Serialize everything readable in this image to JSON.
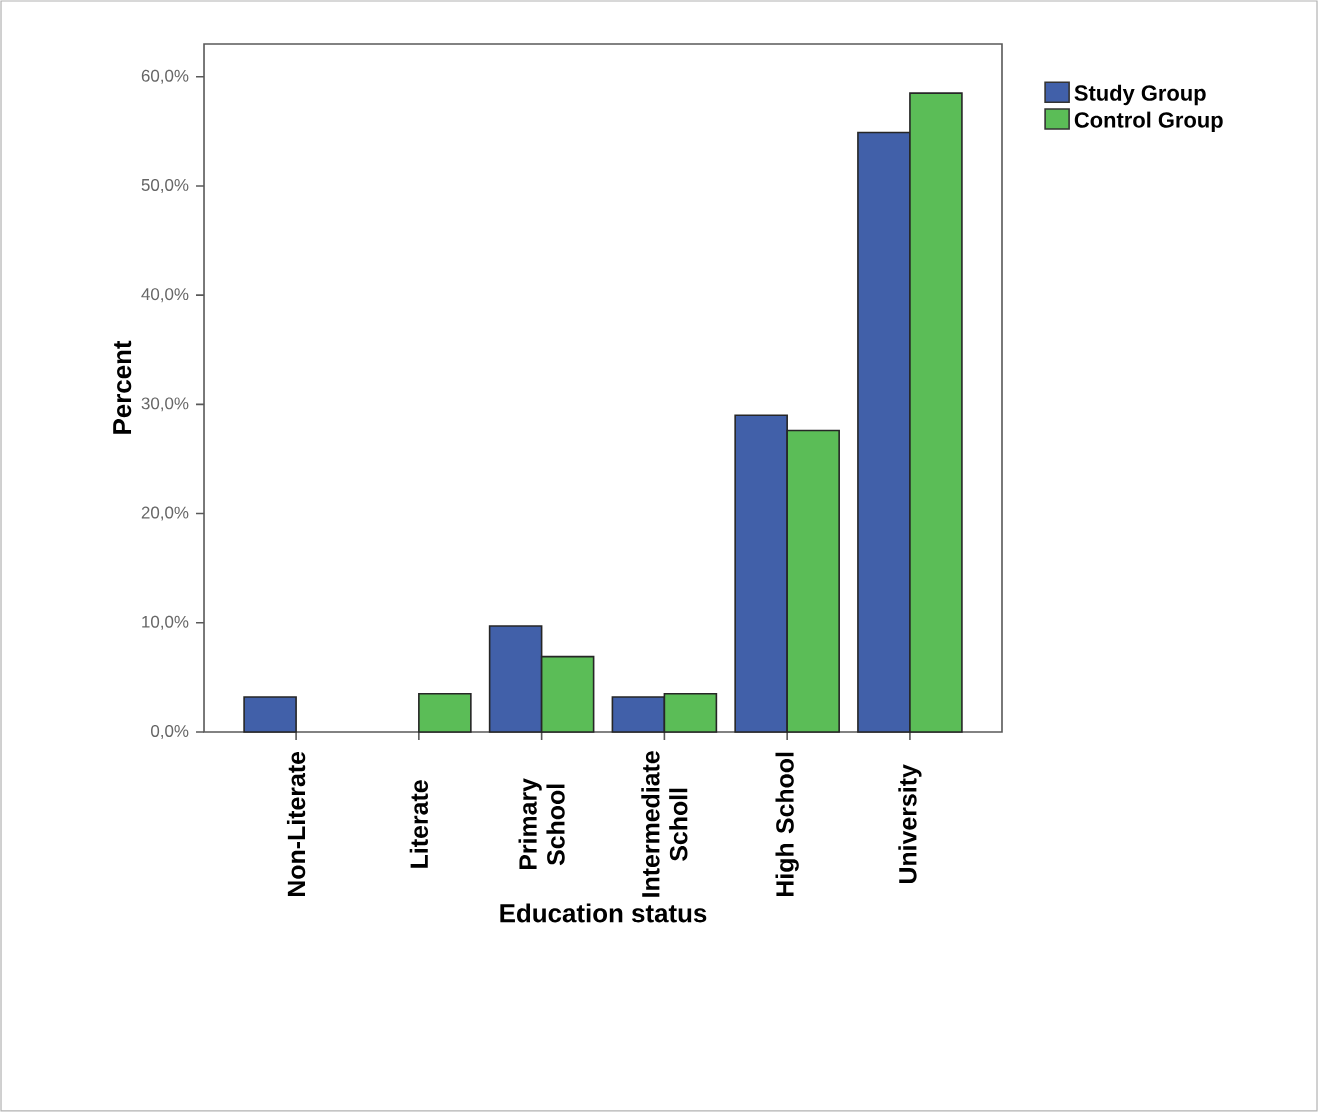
{
  "chart_data": {
    "type": "bar",
    "xlabel": "Education status",
    "ylabel": "Percent",
    "categories": [
      "Non-Literate",
      "Literate",
      "Primary School",
      "Intermediate Scholl",
      "High School",
      "University"
    ],
    "series": [
      {
        "name": "Study Group",
        "color": "#4160a9",
        "values": [
          3.2,
          0,
          9.7,
          3.2,
          29.0,
          54.9
        ]
      },
      {
        "name": "Control Group",
        "color": "#5bbd57",
        "values": [
          0,
          3.5,
          6.9,
          3.5,
          27.6,
          58.5
        ]
      }
    ],
    "ylim": [
      0,
      63
    ],
    "yticks": [
      {
        "value": 0,
        "label": "0,0%"
      },
      {
        "value": 10,
        "label": "10,0%"
      },
      {
        "value": 20,
        "label": "20,0%"
      },
      {
        "value": 30,
        "label": "30,0%"
      },
      {
        "value": 40,
        "label": "40,0%"
      },
      {
        "value": 50,
        "label": "50,0%"
      },
      {
        "value": 60,
        "label": "60,0%"
      }
    ],
    "grid": false,
    "legend": "top right"
  }
}
